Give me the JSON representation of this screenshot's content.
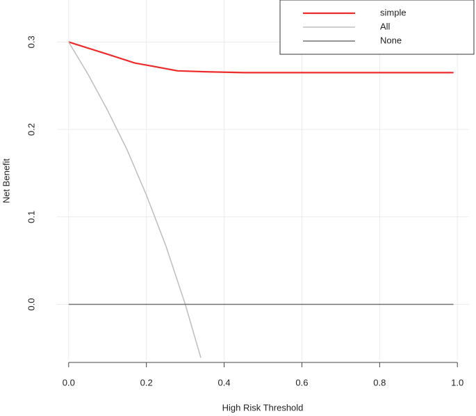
{
  "chart_data": {
    "type": "line",
    "xlabel": "High Risk Threshold",
    "ylabel": "Net Benefit",
    "xlim": [
      -0.03,
      1.03
    ],
    "ylim": [
      -0.064,
      0.348
    ],
    "xticks": [
      {
        "value": 0,
        "label": "0.0"
      },
      0.2,
      0.4,
      0.6,
      0.8,
      {
        "value": 1,
        "label": "1.0"
      }
    ],
    "yticks": [
      {
        "value": 0,
        "label": "0.0"
      },
      0.1,
      0.2,
      0.3
    ],
    "grid": true,
    "legend": "upper right",
    "series": [
      {
        "name": "simple",
        "color": "#ee2b2b",
        "x": [
          0,
          0.05,
          0.1,
          0.17,
          0.22,
          0.28,
          0.35,
          0.45,
          0.6,
          0.8,
          0.99
        ],
        "values": [
          0.3,
          0.293,
          0.286,
          0.276,
          0.272,
          0.267,
          0.266,
          0.265,
          0.265,
          0.265,
          0.265
        ]
      },
      {
        "name": "All",
        "color": "#bdbdbd",
        "x": [
          0,
          0.05,
          0.1,
          0.15,
          0.2,
          0.25,
          0.3,
          0.34
        ],
        "values": [
          0.3,
          0.263,
          0.222,
          0.177,
          0.125,
          0.067,
          0,
          -0.061
        ]
      },
      {
        "name": "None",
        "color": "#707070",
        "x": [
          0,
          0.99
        ],
        "values": [
          0,
          0
        ]
      }
    ]
  }
}
